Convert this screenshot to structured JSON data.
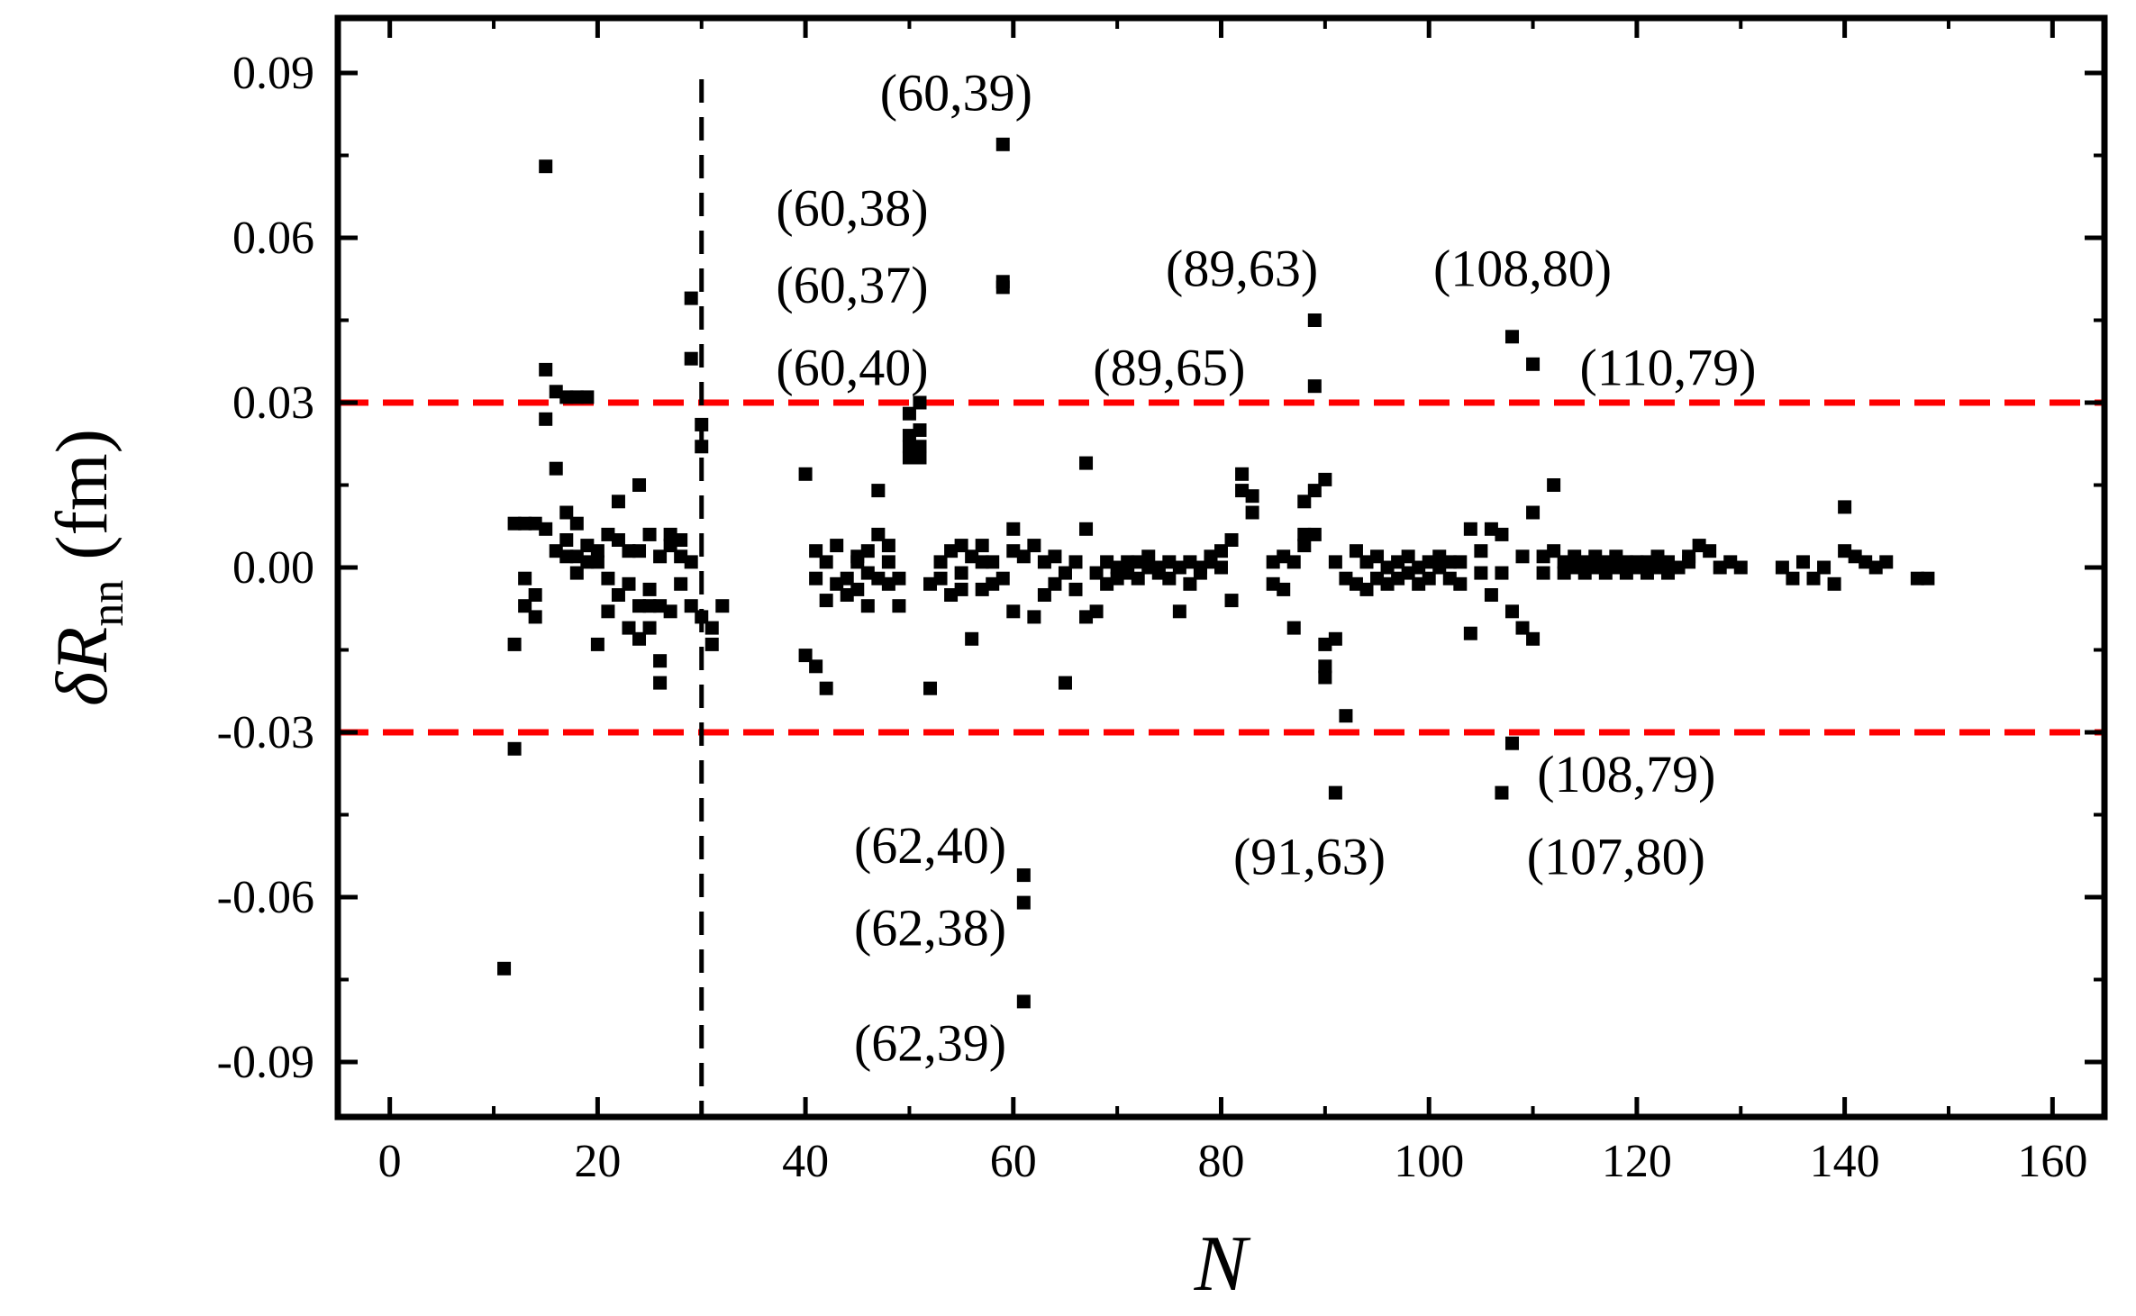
{
  "chart_data": {
    "type": "scatter",
    "xlabel": "N",
    "ylabel": {
      "prefix": "δR",
      "subscript": "nn",
      "unit": "(fm)"
    },
    "xlim": [
      -5,
      165
    ],
    "ylim": [
      -0.1,
      0.1
    ],
    "xticks": [
      0,
      20,
      40,
      60,
      80,
      100,
      120,
      140,
      160
    ],
    "xtick_labels": [
      "0",
      "20",
      "40",
      "60",
      "80",
      "100",
      "120",
      "140",
      "160"
    ],
    "yticks": [
      0.09,
      0.06,
      0.03,
      0.0,
      -0.03,
      -0.06,
      -0.09
    ],
    "ytick_labels": [
      "0.09",
      "0.06",
      "0.03",
      "0.00",
      "-0.03",
      "-0.06",
      "-0.09"
    ],
    "grid": false,
    "reference_lines": [
      {
        "orientation": "horizontal",
        "value": 0.03,
        "color": "#ff0000",
        "style": "dashed"
      },
      {
        "orientation": "horizontal",
        "value": -0.03,
        "color": "#ff0000",
        "style": "dashed"
      },
      {
        "orientation": "vertical",
        "value": 30,
        "color": "#000000",
        "style": "dashed"
      }
    ],
    "marker_color": "#000000",
    "annotations": [
      {
        "text": "(60,39)",
        "x": 54.5,
        "y": 0.0865
      },
      {
        "text": "(60,38)",
        "x": 44.5,
        "y": 0.0655
      },
      {
        "text": "(60,37)",
        "x": 44.5,
        "y": 0.0515
      },
      {
        "text": "(60,40)",
        "x": 44.5,
        "y": 0.0365
      },
      {
        "text": "(89,63)",
        "x": 82,
        "y": 0.0545
      },
      {
        "text": "(89,65)",
        "x": 75,
        "y": 0.0365
      },
      {
        "text": "(108,80)",
        "x": 109,
        "y": 0.0545
      },
      {
        "text": "(110,79)",
        "x": 123,
        "y": 0.0365
      },
      {
        "text": "(62,40)",
        "x": 52,
        "y": -0.0505
      },
      {
        "text": "(62,38)",
        "x": 52,
        "y": -0.0655
      },
      {
        "text": "(62,39)",
        "x": 52,
        "y": -0.0865
      },
      {
        "text": "(91,63)",
        "x": 88.5,
        "y": -0.0525
      },
      {
        "text": "(108,79)",
        "x": 119,
        "y": -0.0375
      },
      {
        "text": "(107,80)",
        "x": 118,
        "y": -0.0525
      }
    ],
    "points": [
      [
        11,
        -0.073
      ],
      [
        12,
        -0.014
      ],
      [
        12,
        0.008
      ],
      [
        12,
        -0.033
      ],
      [
        13,
        0.008
      ],
      [
        13,
        -0.002
      ],
      [
        13,
        -0.007
      ],
      [
        14,
        -0.005
      ],
      [
        14,
        0.008
      ],
      [
        14,
        -0.009
      ],
      [
        15,
        0.073
      ],
      [
        15,
        0.036
      ],
      [
        15,
        0.027
      ],
      [
        15,
        0.007
      ],
      [
        16,
        0.032
      ],
      [
        16,
        0.018
      ],
      [
        16,
        0.003
      ],
      [
        17,
        0.031
      ],
      [
        17,
        0.002
      ],
      [
        17,
        0.01
      ],
      [
        17,
        0.005
      ],
      [
        18,
        0.031
      ],
      [
        18,
        0.008
      ],
      [
        18,
        0.002
      ],
      [
        18,
        -0.001
      ],
      [
        19,
        0.031
      ],
      [
        19,
        0.004
      ],
      [
        19,
        0.001
      ],
      [
        20,
        0.003
      ],
      [
        20,
        -0.014
      ],
      [
        20,
        0.001
      ],
      [
        21,
        0.006
      ],
      [
        21,
        -0.008
      ],
      [
        21,
        -0.002
      ],
      [
        22,
        0.012
      ],
      [
        22,
        0.005
      ],
      [
        22,
        -0.005
      ],
      [
        23,
        0.003
      ],
      [
        23,
        -0.003
      ],
      [
        23,
        -0.011
      ],
      [
        24,
        0.015
      ],
      [
        24,
        -0.007
      ],
      [
        24,
        0.003
      ],
      [
        24,
        -0.013
      ],
      [
        25,
        0.006
      ],
      [
        25,
        -0.004
      ],
      [
        25,
        -0.011
      ],
      [
        25,
        -0.007
      ],
      [
        26,
        0.002
      ],
      [
        26,
        -0.007
      ],
      [
        26,
        -0.017
      ],
      [
        26,
        -0.021
      ],
      [
        27,
        0.006
      ],
      [
        27,
        0.004
      ],
      [
        27,
        -0.008
      ],
      [
        28,
        0.005
      ],
      [
        28,
        0.002
      ],
      [
        28,
        -0.003
      ],
      [
        29,
        0.049
      ],
      [
        29,
        0.038
      ],
      [
        29,
        0.001
      ],
      [
        29,
        -0.007
      ],
      [
        30,
        0.026
      ],
      [
        30,
        0.022
      ],
      [
        30,
        -0.009
      ],
      [
        31,
        -0.014
      ],
      [
        31,
        -0.011
      ],
      [
        32,
        -0.007
      ],
      [
        40,
        0.017
      ],
      [
        40,
        -0.016
      ],
      [
        41,
        0.003
      ],
      [
        41,
        -0.002
      ],
      [
        41,
        -0.018
      ],
      [
        42,
        -0.022
      ],
      [
        42,
        -0.006
      ],
      [
        42,
        0.001
      ],
      [
        43,
        0.004
      ],
      [
        43,
        -0.003
      ],
      [
        44,
        -0.002
      ],
      [
        44,
        -0.005
      ],
      [
        45,
        0.002
      ],
      [
        45,
        -0.004
      ],
      [
        45,
        0.001
      ],
      [
        46,
        0.003
      ],
      [
        46,
        -0.007
      ],
      [
        46,
        -0.001
      ],
      [
        47,
        0.006
      ],
      [
        47,
        -0.002
      ],
      [
        47,
        0.014
      ],
      [
        48,
        0.004
      ],
      [
        48,
        -0.003
      ],
      [
        48,
        0.001
      ],
      [
        49,
        -0.002
      ],
      [
        49,
        -0.007
      ],
      [
        50,
        0.028
      ],
      [
        50,
        0.024
      ],
      [
        50,
        0.022
      ],
      [
        50,
        0.02
      ],
      [
        51,
        0.03
      ],
      [
        51,
        0.025
      ],
      [
        51,
        0.022
      ],
      [
        51,
        0.02
      ],
      [
        52,
        -0.022
      ],
      [
        52,
        -0.003
      ],
      [
        53,
        -0.002
      ],
      [
        53,
        0.001
      ],
      [
        54,
        0.003
      ],
      [
        54,
        -0.005
      ],
      [
        55,
        0.004
      ],
      [
        55,
        -0.001
      ],
      [
        55,
        -0.004
      ],
      [
        56,
        0.002
      ],
      [
        56,
        -0.013
      ],
      [
        57,
        0.004
      ],
      [
        57,
        -0.004
      ],
      [
        57,
        0.001
      ],
      [
        58,
        -0.003
      ],
      [
        58,
        0.001
      ],
      [
        59,
        0.077
      ],
      [
        59,
        0.052
      ],
      [
        59,
        0.051
      ],
      [
        59,
        -0.002
      ],
      [
        60,
        0.007
      ],
      [
        60,
        -0.008
      ],
      [
        60,
        0.003
      ],
      [
        61,
        -0.056
      ],
      [
        61,
        -0.061
      ],
      [
        61,
        -0.079
      ],
      [
        61,
        0.002
      ],
      [
        62,
        -0.009
      ],
      [
        62,
        0.004
      ],
      [
        63,
        -0.005
      ],
      [
        63,
        0.001
      ],
      [
        64,
        -0.003
      ],
      [
        64,
        0.002
      ],
      [
        65,
        -0.021
      ],
      [
        65,
        -0.001
      ],
      [
        66,
        0.001
      ],
      [
        66,
        -0.004
      ],
      [
        67,
        0.019
      ],
      [
        67,
        0.007
      ],
      [
        67,
        -0.009
      ],
      [
        68,
        -0.001
      ],
      [
        68,
        -0.008
      ],
      [
        69,
        0.001
      ],
      [
        69,
        -0.003
      ],
      [
        70,
        0.0
      ],
      [
        70,
        -0.002
      ],
      [
        71,
        0.001
      ],
      [
        71,
        -0.001
      ],
      [
        72,
        0.001
      ],
      [
        72,
        -0.002
      ],
      [
        73,
        0.0
      ],
      [
        73,
        0.002
      ],
      [
        74,
        -0.001
      ],
      [
        74,
        0.0
      ],
      [
        75,
        0.001
      ],
      [
        75,
        -0.002
      ],
      [
        76,
        -0.008
      ],
      [
        76,
        0.0
      ],
      [
        77,
        0.001
      ],
      [
        77,
        -0.003
      ],
      [
        78,
        0.0
      ],
      [
        78,
        -0.001
      ],
      [
        79,
        0.002
      ],
      [
        79,
        0.001
      ],
      [
        80,
        0.003
      ],
      [
        80,
        0.0
      ],
      [
        81,
        0.005
      ],
      [
        81,
        -0.006
      ],
      [
        82,
        0.017
      ],
      [
        82,
        0.014
      ],
      [
        83,
        0.013
      ],
      [
        83,
        0.01
      ],
      [
        85,
        -0.003
      ],
      [
        85,
        0.001
      ],
      [
        86,
        -0.004
      ],
      [
        86,
        0.002
      ],
      [
        87,
        -0.011
      ],
      [
        87,
        0.001
      ],
      [
        88,
        0.012
      ],
      [
        88,
        0.006
      ],
      [
        88,
        0.004
      ],
      [
        89,
        0.045
      ],
      [
        89,
        0.033
      ],
      [
        89,
        0.014
      ],
      [
        89,
        0.006
      ],
      [
        90,
        0.016
      ],
      [
        90,
        -0.014
      ],
      [
        90,
        -0.018
      ],
      [
        90,
        -0.02
      ],
      [
        91,
        -0.041
      ],
      [
        91,
        -0.013
      ],
      [
        91,
        0.001
      ],
      [
        92,
        -0.027
      ],
      [
        92,
        -0.002
      ],
      [
        93,
        0.003
      ],
      [
        93,
        -0.003
      ],
      [
        94,
        0.001
      ],
      [
        94,
        -0.004
      ],
      [
        95,
        -0.002
      ],
      [
        95,
        0.002
      ],
      [
        96,
        0.0
      ],
      [
        96,
        -0.003
      ],
      [
        97,
        0.001
      ],
      [
        97,
        -0.002
      ],
      [
        98,
        0.002
      ],
      [
        98,
        -0.001
      ],
      [
        99,
        -0.003
      ],
      [
        99,
        0.0
      ],
      [
        100,
        0.001
      ],
      [
        100,
        -0.002
      ],
      [
        101,
        0.002
      ],
      [
        101,
        0.0
      ],
      [
        102,
        -0.002
      ],
      [
        102,
        0.001
      ],
      [
        103,
        0.001
      ],
      [
        103,
        -0.003
      ],
      [
        104,
        0.007
      ],
      [
        104,
        -0.012
      ],
      [
        105,
        0.003
      ],
      [
        105,
        -0.001
      ],
      [
        106,
        0.007
      ],
      [
        106,
        -0.005
      ],
      [
        107,
        0.006
      ],
      [
        107,
        -0.041
      ],
      [
        107,
        -0.001
      ],
      [
        108,
        0.042
      ],
      [
        108,
        -0.032
      ],
      [
        108,
        -0.008
      ],
      [
        109,
        -0.011
      ],
      [
        109,
        0.002
      ],
      [
        110,
        0.037
      ],
      [
        110,
        0.01
      ],
      [
        110,
        -0.013
      ],
      [
        111,
        0.002
      ],
      [
        111,
        -0.001
      ],
      [
        112,
        0.015
      ],
      [
        112,
        0.003
      ],
      [
        113,
        0.001
      ],
      [
        113,
        -0.001
      ],
      [
        114,
        0.002
      ],
      [
        114,
        0.0
      ],
      [
        115,
        0.001
      ],
      [
        115,
        -0.001
      ],
      [
        116,
        0.002
      ],
      [
        116,
        0.0
      ],
      [
        117,
        0.001
      ],
      [
        117,
        -0.001
      ],
      [
        118,
        0.002
      ],
      [
        118,
        0.0
      ],
      [
        119,
        0.001
      ],
      [
        119,
        -0.001
      ],
      [
        120,
        0.001
      ],
      [
        120,
        0.0
      ],
      [
        121,
        0.001
      ],
      [
        121,
        -0.001
      ],
      [
        122,
        0.002
      ],
      [
        122,
        0.0
      ],
      [
        123,
        0.001
      ],
      [
        123,
        -0.001
      ],
      [
        124,
        0.0
      ],
      [
        125,
        0.002
      ],
      [
        125,
        0.001
      ],
      [
        126,
        0.004
      ],
      [
        127,
        0.003
      ],
      [
        128,
        0.0
      ],
      [
        129,
        0.001
      ],
      [
        130,
        0.0
      ],
      [
        134,
        0.0
      ],
      [
        135,
        -0.002
      ],
      [
        136,
        0.001
      ],
      [
        137,
        -0.002
      ],
      [
        138,
        0.0
      ],
      [
        139,
        -0.003
      ],
      [
        140,
        0.011
      ],
      [
        140,
        0.003
      ],
      [
        141,
        0.002
      ],
      [
        142,
        0.001
      ],
      [
        143,
        0.0
      ],
      [
        144,
        0.001
      ],
      [
        147,
        -0.002
      ],
      [
        148,
        -0.002
      ]
    ]
  }
}
